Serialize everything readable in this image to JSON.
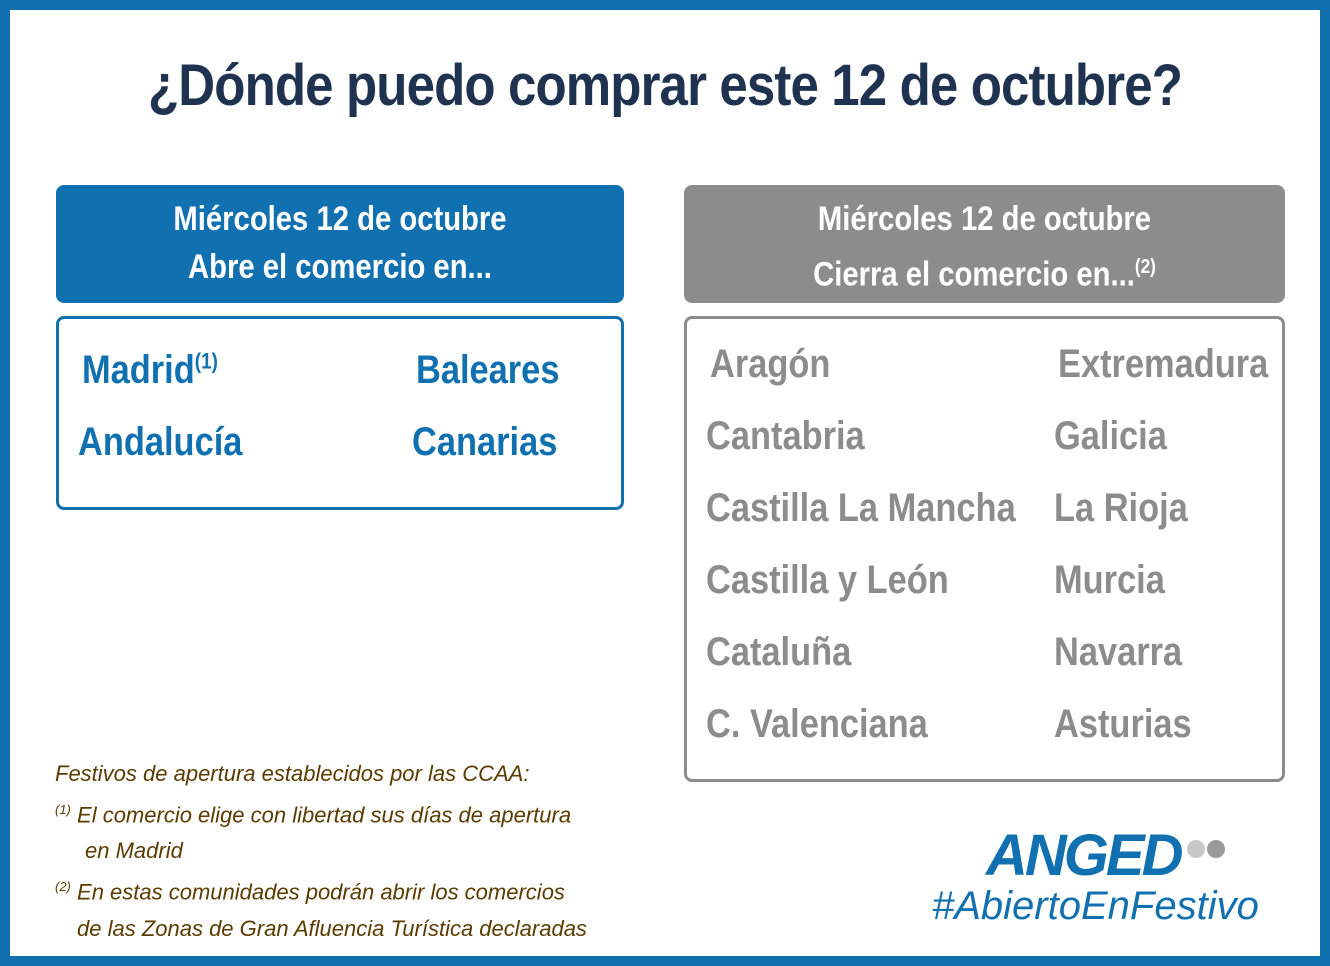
{
  "title": "¿Dónde puedo comprar este 12 de octubre?",
  "open": {
    "day": "Miércoles 12 de octubre",
    "subtitle": "Abre el comercio en...",
    "color": "#1170b0",
    "regions": {
      "madrid": "Madrid",
      "madrid_note": "(1)",
      "baleares": "Baleares",
      "andalucia": "Andalucía",
      "canarias": "Canarias"
    }
  },
  "close": {
    "day": "Miércoles 12 de octubre",
    "subtitle": "Cierra el comercio en...",
    "subtitle_note": "(2)",
    "color": "#8c8c8c",
    "regions_left": [
      "Aragón",
      "Cantabria",
      "Castilla La Mancha",
      "Castilla y León",
      "Cataluña",
      "C. Valenciana"
    ],
    "regions_right": [
      "Extremadura",
      "Galicia",
      "La Rioja",
      "Murcia",
      "Navarra",
      "Asturias"
    ]
  },
  "notes": {
    "heading": "Festivos de apertura establecidos por las CCAA:",
    "note1_mark": "(1)",
    "note1_line1": "El comercio elige con libertad sus días de apertura",
    "note1_line2": "en Madrid",
    "note2_mark": "(2)",
    "note2_line1": "En estas comunidades podrán abrir los comercios",
    "note2_line2": "de las Zonas de Gran Afluencia Turística declaradas"
  },
  "brand": {
    "logo": "ANGED",
    "hashtag": "#AbiertoEnFestivo"
  }
}
